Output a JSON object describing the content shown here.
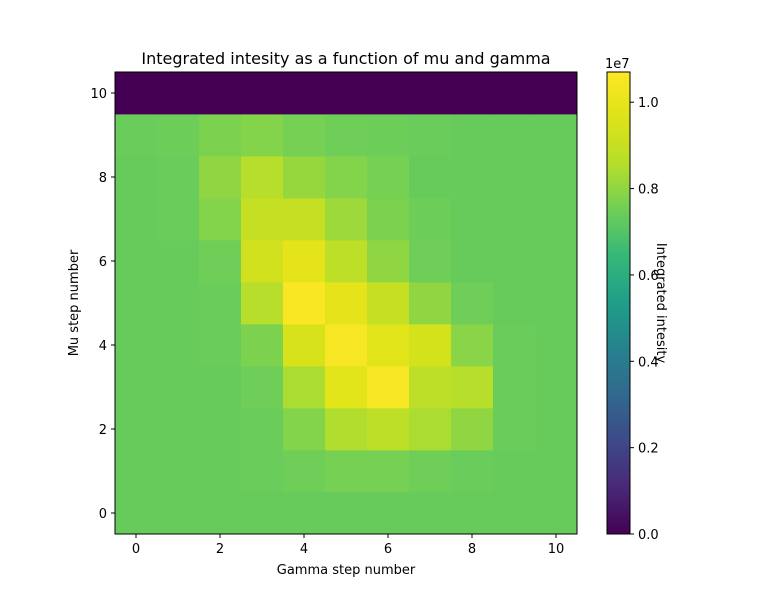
{
  "chart_data": {
    "type": "heatmap",
    "title": "Integrated intesity as a function of mu and gamma",
    "xlabel": "Gamma step number",
    "ylabel": "Mu step number",
    "x": [
      0,
      1,
      2,
      3,
      4,
      5,
      6,
      7,
      8,
      9,
      10
    ],
    "y": [
      0,
      1,
      2,
      3,
      4,
      5,
      6,
      7,
      8,
      9,
      10
    ],
    "xlim": [
      -0.5,
      10.5
    ],
    "ylim": [
      -0.5,
      10.5
    ],
    "xticks": [
      "0",
      "2",
      "4",
      "6",
      "8",
      "10"
    ],
    "yticks": [
      "0",
      "2",
      "4",
      "6",
      "8",
      "10"
    ],
    "colormap": "viridis",
    "colorbar": {
      "label": "Integrated intesity",
      "offset_text": "1e7",
      "range": [
        0,
        1.07
      ],
      "ticks": [
        "0.0",
        "0.2",
        "0.4",
        "0.6",
        "0.8",
        "1.0"
      ]
    },
    "values_1e7": [
      [
        0.735,
        0.735,
        0.735,
        0.735,
        0.735,
        0.735,
        0.735,
        0.735,
        0.735,
        0.735,
        0.735
      ],
      [
        0.735,
        0.735,
        0.735,
        0.74,
        0.75,
        0.76,
        0.76,
        0.75,
        0.74,
        0.735,
        0.735
      ],
      [
        0.735,
        0.735,
        0.735,
        0.74,
        0.78,
        0.85,
        0.88,
        0.84,
        0.8,
        0.74,
        0.735
      ],
      [
        0.735,
        0.735,
        0.735,
        0.75,
        0.84,
        0.98,
        1.05,
        0.88,
        0.86,
        0.74,
        0.735
      ],
      [
        0.735,
        0.735,
        0.74,
        0.77,
        0.95,
        1.05,
        0.98,
        0.94,
        0.79,
        0.74,
        0.735
      ],
      [
        0.735,
        0.735,
        0.74,
        0.86,
        1.06,
        0.99,
        0.9,
        0.8,
        0.75,
        0.735,
        0.735
      ],
      [
        0.735,
        0.735,
        0.75,
        0.93,
        0.99,
        0.88,
        0.8,
        0.75,
        0.735,
        0.735,
        0.735
      ],
      [
        0.735,
        0.74,
        0.78,
        0.9,
        0.9,
        0.82,
        0.77,
        0.745,
        0.735,
        0.735,
        0.735
      ],
      [
        0.735,
        0.74,
        0.8,
        0.86,
        0.81,
        0.78,
        0.76,
        0.735,
        0.735,
        0.735,
        0.735
      ],
      [
        0.74,
        0.745,
        0.77,
        0.78,
        0.76,
        0.75,
        0.745,
        0.74,
        0.735,
        0.735,
        0.735
      ],
      [
        0,
        0,
        0,
        0,
        0,
        0,
        0,
        0,
        0,
        0,
        0
      ]
    ]
  }
}
